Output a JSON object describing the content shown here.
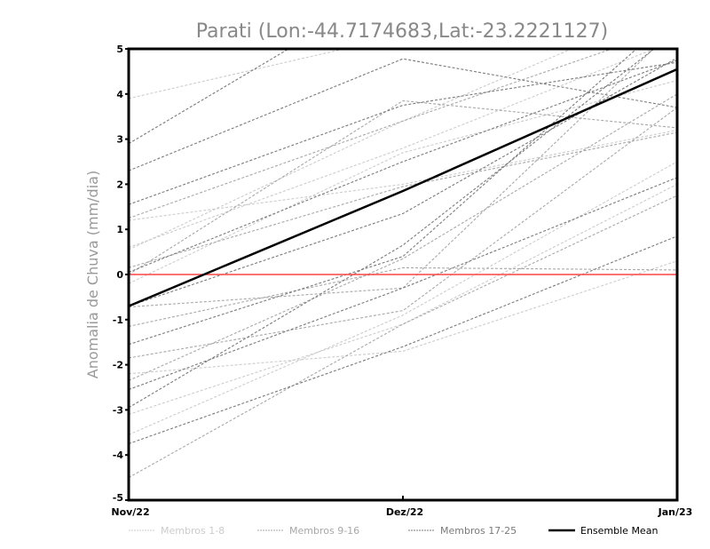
{
  "chart_data": {
    "type": "line",
    "title": "Parati (Lon:-44.7174683,Lat:-23.2221127)",
    "xlabel": "",
    "ylabel": "Anomalia de Chuva (mm/dia)",
    "categories": [
      "Nov/22",
      "Dez/22",
      "Jan/23"
    ],
    "ylim": [
      -5,
      5
    ],
    "yticks": [
      -5,
      -4,
      -3,
      -2,
      -1,
      0,
      1,
      2,
      3,
      4,
      5
    ],
    "grid": false,
    "legend_position": "bottom",
    "zero_line_color": "#ff4444",
    "groups": [
      {
        "name": "Membros 1-8",
        "color": "#cccccc",
        "series": [
          [
            3.9,
            5.3,
            6.5
          ],
          [
            0.6,
            2.8,
            5.2
          ],
          [
            1.2,
            2.0,
            3.2
          ],
          [
            -0.2,
            2.7,
            4.3
          ],
          [
            -2.2,
            -1.7,
            0.3
          ],
          [
            -3.1,
            -1.1,
            2.0
          ],
          [
            -3.55,
            -0.9,
            2.5
          ],
          [
            0.55,
            3.4,
            6.0
          ]
        ]
      },
      {
        "name": "Membros 9-16",
        "color": "#a8a8a8",
        "series": [
          [
            1.25,
            3.4,
            5.5
          ],
          [
            -1.15,
            0.15,
            0.1
          ],
          [
            -1.85,
            -0.8,
            3.7
          ],
          [
            0.15,
            1.95,
            3.15
          ],
          [
            -2.35,
            0.35,
            4.0
          ],
          [
            -4.5,
            -1.1,
            1.75
          ],
          [
            0.0,
            3.85,
            3.25
          ],
          [
            -0.72,
            -0.3,
            5.5
          ]
        ]
      },
      {
        "name": "Membros 17-25",
        "color": "#7a7a7a",
        "series": [
          [
            2.9,
            6.5,
            8.0
          ],
          [
            2.3,
            4.78,
            3.7
          ],
          [
            1.55,
            3.75,
            4.7
          ],
          [
            -0.7,
            1.35,
            4.8
          ],
          [
            -2.55,
            -0.3,
            2.15
          ],
          [
            -2.95,
            0.65,
            5.4
          ],
          [
            -3.75,
            -1.6,
            0.85
          ],
          [
            -1.55,
            0.4,
            5.8
          ],
          [
            0.05,
            2.5,
            4.75
          ]
        ]
      }
    ],
    "ensemble_mean": {
      "name": "Ensemble Mean",
      "color": "#000000",
      "values": [
        -0.7,
        1.85,
        4.55
      ]
    }
  }
}
